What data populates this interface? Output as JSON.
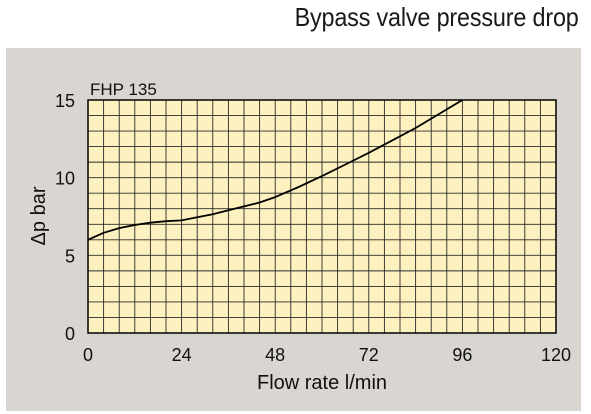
{
  "page_title": "Bypass valve pressure drop",
  "colors": {
    "panel": "#d9d6d1",
    "plot": "#fdf2bf",
    "grid": "#2a2a2a",
    "curve": "#000000"
  },
  "chart_data": {
    "type": "line",
    "title": "Bypass valve pressure drop",
    "annotation": "FHP 135",
    "xlabel": "Flow rate l/min",
    "ylabel": "Δp bar",
    "xlim": [
      0,
      120
    ],
    "ylim": [
      0,
      15
    ],
    "xticks": [
      0,
      24,
      48,
      72,
      96,
      120
    ],
    "yticks": [
      0,
      5,
      10,
      15
    ],
    "grid": true,
    "series": [
      {
        "x": [
          0,
          4,
          8,
          12,
          16,
          20,
          24,
          28,
          32,
          36,
          40,
          44,
          48,
          54,
          60,
          66,
          72,
          78,
          84,
          90,
          96
        ],
        "y": [
          6.0,
          6.45,
          6.75,
          6.95,
          7.1,
          7.2,
          7.25,
          7.45,
          7.65,
          7.9,
          8.15,
          8.4,
          8.75,
          9.4,
          10.1,
          10.85,
          11.6,
          12.4,
          13.2,
          14.1,
          15.0
        ]
      }
    ]
  }
}
